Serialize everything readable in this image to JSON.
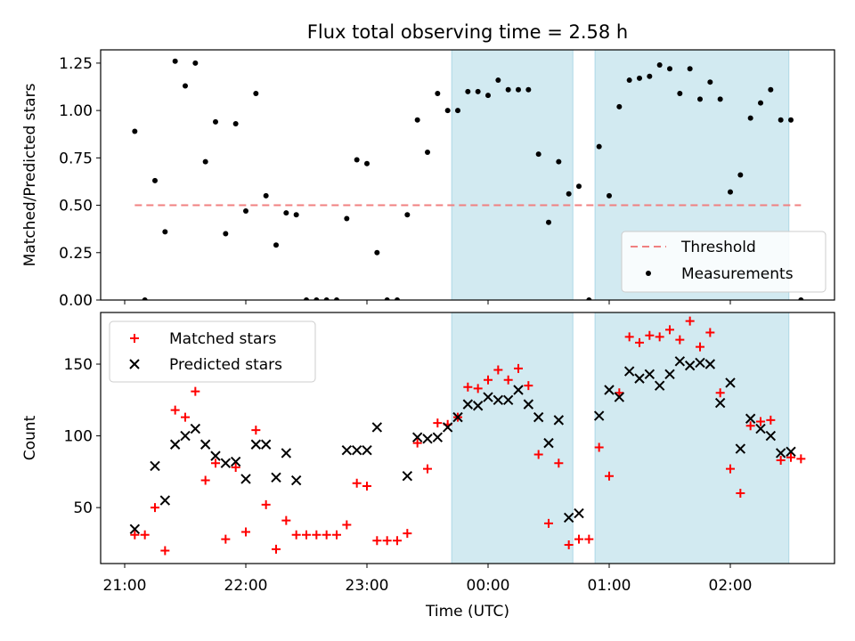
{
  "title": "Flux total observing time = 2.58 h",
  "colors": {
    "shade": "#add8e6",
    "threshold": "#f08080",
    "measurement": "#000000",
    "matched": "#ff0000",
    "predicted": "#000000"
  },
  "chart_data": [
    {
      "type": "scatter",
      "panel": "top",
      "ylabel": "Matched/Predicted stars",
      "ylim": [
        0,
        1.32
      ],
      "yticks": [
        "0.00",
        "0.25",
        "0.50",
        "0.75",
        "1.00",
        "1.25"
      ],
      "threshold": 0.5,
      "legend": {
        "placement": "lower-right",
        "entries": [
          "Threshold",
          "Measurements"
        ]
      },
      "shaded_intervals": [
        [
          "23:42",
          "00:42"
        ],
        [
          "00:53",
          "02:29"
        ]
      ],
      "series": [
        {
          "name": "Measurements",
          "points": [
            [
              "21:05",
              0.89
            ],
            [
              "21:10",
              0.0
            ],
            [
              "21:15",
              0.63
            ],
            [
              "21:20",
              0.36
            ],
            [
              "21:25",
              1.26
            ],
            [
              "21:30",
              1.13
            ],
            [
              "21:35",
              1.25
            ],
            [
              "21:40",
              0.73
            ],
            [
              "21:45",
              0.94
            ],
            [
              "21:50",
              0.35
            ],
            [
              "21:55",
              0.93
            ],
            [
              "22:00",
              0.47
            ],
            [
              "22:05",
              1.09
            ],
            [
              "22:10",
              0.55
            ],
            [
              "22:15",
              0.29
            ],
            [
              "22:20",
              0.46
            ],
            [
              "22:25",
              0.45
            ],
            [
              "22:30",
              0.0
            ],
            [
              "22:35",
              0.0
            ],
            [
              "22:40",
              0.0
            ],
            [
              "22:45",
              0.0
            ],
            [
              "22:50",
              0.43
            ],
            [
              "22:55",
              0.74
            ],
            [
              "23:00",
              0.72
            ],
            [
              "23:05",
              0.25
            ],
            [
              "23:10",
              0.0
            ],
            [
              "23:15",
              0.0
            ],
            [
              "23:20",
              0.45
            ],
            [
              "23:25",
              0.95
            ],
            [
              "23:30",
              0.78
            ],
            [
              "23:35",
              1.09
            ],
            [
              "23:40",
              1.0
            ],
            [
              "23:45",
              1.0
            ],
            [
              "23:50",
              1.1
            ],
            [
              "23:55",
              1.1
            ],
            [
              "00:00",
              1.08
            ],
            [
              "00:05",
              1.16
            ],
            [
              "00:10",
              1.11
            ],
            [
              "00:15",
              1.11
            ],
            [
              "00:20",
              1.11
            ],
            [
              "00:25",
              0.77
            ],
            [
              "00:30",
              0.41
            ],
            [
              "00:35",
              0.73
            ],
            [
              "00:40",
              0.56
            ],
            [
              "00:45",
              0.6
            ],
            [
              "00:50",
              0.0
            ],
            [
              "00:55",
              0.81
            ],
            [
              "01:00",
              0.55
            ],
            [
              "01:05",
              1.02
            ],
            [
              "01:10",
              1.16
            ],
            [
              "01:15",
              1.17
            ],
            [
              "01:20",
              1.18
            ],
            [
              "01:25",
              1.24
            ],
            [
              "01:30",
              1.22
            ],
            [
              "01:35",
              1.09
            ],
            [
              "01:40",
              1.22
            ],
            [
              "01:45",
              1.06
            ],
            [
              "01:50",
              1.15
            ],
            [
              "01:55",
              1.06
            ],
            [
              "02:00",
              0.57
            ],
            [
              "02:05",
              0.66
            ],
            [
              "02:10",
              0.96
            ],
            [
              "02:15",
              1.04
            ],
            [
              "02:20",
              1.11
            ],
            [
              "02:25",
              0.95
            ],
            [
              "02:30",
              0.95
            ],
            [
              "02:35",
              0.0
            ]
          ]
        }
      ]
    },
    {
      "type": "scatter",
      "panel": "bottom",
      "xlabel": "Time (UTC)",
      "ylabel": "Count",
      "ylim": [
        11,
        186
      ],
      "yticks": [
        "50",
        "100",
        "150"
      ],
      "xticks": [
        "21:00",
        "22:00",
        "23:00",
        "00:00",
        "01:00",
        "02:00"
      ],
      "legend": {
        "placement": "upper-left",
        "entries": [
          "Matched stars",
          "Predicted stars"
        ]
      },
      "shaded_intervals": [
        [
          "23:42",
          "00:42"
        ],
        [
          "00:53",
          "02:29"
        ]
      ],
      "series": [
        {
          "name": "Matched stars",
          "marker": "plus",
          "points": [
            [
              "21:05",
              31
            ],
            [
              "21:10",
              31
            ],
            [
              "21:15",
              50
            ],
            [
              "21:20",
              20
            ],
            [
              "21:25",
              118
            ],
            [
              "21:30",
              113
            ],
            [
              "21:35",
              131
            ],
            [
              "21:40",
              69
            ],
            [
              "21:45",
              81
            ],
            [
              "21:50",
              28
            ],
            [
              "21:55",
              78
            ],
            [
              "22:00",
              33
            ],
            [
              "22:05",
              104
            ],
            [
              "22:10",
              52
            ],
            [
              "22:15",
              21
            ],
            [
              "22:20",
              41
            ],
            [
              "22:25",
              31
            ],
            [
              "22:30",
              31
            ],
            [
              "22:35",
              31
            ],
            [
              "22:40",
              31
            ],
            [
              "22:45",
              31
            ],
            [
              "22:50",
              38
            ],
            [
              "22:55",
              67
            ],
            [
              "23:00",
              65
            ],
            [
              "23:05",
              27
            ],
            [
              "23:10",
              27
            ],
            [
              "23:15",
              27
            ],
            [
              "23:20",
              32
            ],
            [
              "23:25",
              95
            ],
            [
              "23:30",
              77
            ],
            [
              "23:35",
              109
            ],
            [
              "23:40",
              108
            ],
            [
              "23:45",
              113
            ],
            [
              "23:50",
              134
            ],
            [
              "23:55",
              133
            ],
            [
              "00:00",
              139
            ],
            [
              "00:05",
              146
            ],
            [
              "00:10",
              139
            ],
            [
              "00:15",
              147
            ],
            [
              "00:20",
              135
            ],
            [
              "00:25",
              87
            ],
            [
              "00:30",
              39
            ],
            [
              "00:35",
              81
            ],
            [
              "00:40",
              24
            ],
            [
              "00:45",
              28
            ],
            [
              "00:50",
              28
            ],
            [
              "00:55",
              92
            ],
            [
              "01:00",
              72
            ],
            [
              "01:05",
              130
            ],
            [
              "01:10",
              169
            ],
            [
              "01:15",
              165
            ],
            [
              "01:20",
              170
            ],
            [
              "01:25",
              169
            ],
            [
              "01:30",
              174
            ],
            [
              "01:35",
              167
            ],
            [
              "01:40",
              180
            ],
            [
              "01:45",
              162
            ],
            [
              "01:50",
              172
            ],
            [
              "01:55",
              130
            ],
            [
              "02:00",
              77
            ],
            [
              "02:05",
              60
            ],
            [
              "02:10",
              107
            ],
            [
              "02:15",
              110
            ],
            [
              "02:20",
              111
            ],
            [
              "02:25",
              83
            ],
            [
              "02:30",
              85
            ],
            [
              "02:35",
              84
            ]
          ]
        },
        {
          "name": "Predicted stars",
          "marker": "cross",
          "points": [
            [
              "21:05",
              35
            ],
            [
              "21:15",
              79
            ],
            [
              "21:20",
              55
            ],
            [
              "21:25",
              94
            ],
            [
              "21:30",
              100
            ],
            [
              "21:35",
              105
            ],
            [
              "21:40",
              94
            ],
            [
              "21:45",
              86
            ],
            [
              "21:50",
              81
            ],
            [
              "21:55",
              82
            ],
            [
              "22:00",
              70
            ],
            [
              "22:05",
              94
            ],
            [
              "22:10",
              94
            ],
            [
              "22:15",
              71
            ],
            [
              "22:20",
              88
            ],
            [
              "22:25",
              69
            ],
            [
              "22:50",
              90
            ],
            [
              "22:55",
              90
            ],
            [
              "23:00",
              90
            ],
            [
              "23:05",
              106
            ],
            [
              "23:20",
              72
            ],
            [
              "23:25",
              99
            ],
            [
              "23:30",
              98
            ],
            [
              "23:35",
              99
            ],
            [
              "23:40",
              106
            ],
            [
              "23:45",
              113
            ],
            [
              "23:50",
              122
            ],
            [
              "23:55",
              121
            ],
            [
              "00:00",
              127
            ],
            [
              "00:05",
              125
            ],
            [
              "00:10",
              125
            ],
            [
              "00:15",
              132
            ],
            [
              "00:20",
              122
            ],
            [
              "00:25",
              113
            ],
            [
              "00:30",
              95
            ],
            [
              "00:35",
              111
            ],
            [
              "00:40",
              43
            ],
            [
              "00:45",
              46
            ],
            [
              "00:55",
              114
            ],
            [
              "01:00",
              132
            ],
            [
              "01:05",
              127
            ],
            [
              "01:10",
              145
            ],
            [
              "01:15",
              140
            ],
            [
              "01:20",
              143
            ],
            [
              "01:25",
              135
            ],
            [
              "01:30",
              143
            ],
            [
              "01:35",
              152
            ],
            [
              "01:40",
              149
            ],
            [
              "01:45",
              151
            ],
            [
              "01:50",
              150
            ],
            [
              "01:55",
              123
            ],
            [
              "02:00",
              137
            ],
            [
              "02:05",
              91
            ],
            [
              "02:10",
              112
            ],
            [
              "02:15",
              105
            ],
            [
              "02:20",
              100
            ],
            [
              "02:25",
              88
            ],
            [
              "02:30",
              89
            ]
          ]
        }
      ]
    }
  ]
}
